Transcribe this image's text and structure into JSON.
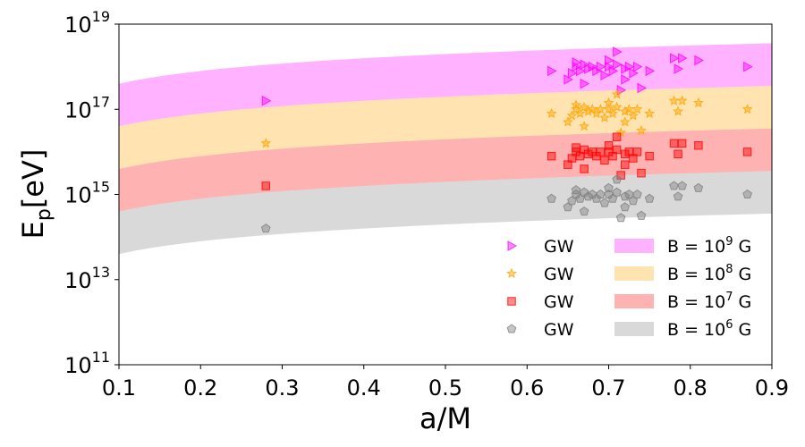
{
  "chart_data": {
    "type": "scatter",
    "title": "",
    "xlabel": "a/M",
    "ylabel_main": "E",
    "ylabel_sub": "p",
    "ylabel_unit": "[eV]",
    "xlim": [
      0.1,
      0.9
    ],
    "ylim_log10": [
      11,
      19
    ],
    "x_ticks": [
      0.1,
      0.2,
      0.3,
      0.4,
      0.5,
      0.6,
      0.7,
      0.8,
      0.9
    ],
    "x_tick_labels": [
      "0.1",
      "0.2",
      "0.3",
      "0.4",
      "0.5",
      "0.6",
      "0.7",
      "0.8",
      "0.9"
    ],
    "y_ticks_log10": [
      11,
      13,
      15,
      17,
      19
    ],
    "y_tick_base": "10",
    "y_tick_exponents": [
      "11",
      "13",
      "15",
      "17",
      "19"
    ],
    "bands": [
      {
        "name": "B = 10^9 G",
        "label_prefix": "B = 10",
        "label_exp": "9",
        "label_suffix": " G",
        "color": "#ff00ff",
        "opacity": 0.3,
        "lower_log10_at_0_1": 16.6,
        "upper_log10_at_0_1": 17.6,
        "lower_log10_at_0_9": 17.55,
        "upper_log10_at_0_9": 18.55
      },
      {
        "name": "B = 10^8 G",
        "label_prefix": "B = 10",
        "label_exp": "8",
        "label_suffix": " G",
        "color": "#ffa500",
        "opacity": 0.3,
        "lower_log10_at_0_1": 15.6,
        "upper_log10_at_0_1": 16.6,
        "lower_log10_at_0_9": 16.55,
        "upper_log10_at_0_9": 17.55
      },
      {
        "name": "B = 10^7 G",
        "label_prefix": "B = 10",
        "label_exp": "7",
        "label_suffix": " G",
        "color": "#ff0000",
        "opacity": 0.3,
        "lower_log10_at_0_1": 14.6,
        "upper_log10_at_0_1": 15.6,
        "lower_log10_at_0_9": 15.55,
        "upper_log10_at_0_9": 16.55
      },
      {
        "name": "B = 10^6 G",
        "label_prefix": "B = 10",
        "label_exp": "6",
        "label_suffix": " G",
        "color": "#808080",
        "opacity": 0.3,
        "lower_log10_at_0_1": 13.6,
        "upper_log10_at_0_1": 14.6,
        "lower_log10_at_0_9": 14.55,
        "upper_log10_at_0_9": 15.55
      }
    ],
    "series": [
      {
        "name": "GW",
        "marker": "triangle-right",
        "color": "#ff00ff",
        "points": [
          [
            0.28,
            17.2
          ],
          [
            0.63,
            17.9
          ],
          [
            0.65,
            17.7
          ],
          [
            0.655,
            17.85
          ],
          [
            0.66,
            18.0
          ],
          [
            0.66,
            18.1
          ],
          [
            0.665,
            17.9
          ],
          [
            0.67,
            18.05
          ],
          [
            0.67,
            17.6
          ],
          [
            0.675,
            17.95
          ],
          [
            0.68,
            18.0
          ],
          [
            0.685,
            17.9
          ],
          [
            0.69,
            18.0
          ],
          [
            0.695,
            17.8
          ],
          [
            0.7,
            18.0
          ],
          [
            0.7,
            18.15
          ],
          [
            0.705,
            17.9
          ],
          [
            0.71,
            18.35
          ],
          [
            0.71,
            18.05
          ],
          [
            0.715,
            17.45
          ],
          [
            0.72,
            17.7
          ],
          [
            0.72,
            17.95
          ],
          [
            0.725,
            18.0
          ],
          [
            0.73,
            17.85
          ],
          [
            0.735,
            18.0
          ],
          [
            0.74,
            17.5
          ],
          [
            0.75,
            17.9
          ],
          [
            0.78,
            18.2
          ],
          [
            0.785,
            17.95
          ],
          [
            0.79,
            18.2
          ],
          [
            0.81,
            18.15
          ],
          [
            0.87,
            18.0
          ]
        ]
      },
      {
        "name": "GW",
        "marker": "star",
        "color": "#ffa500",
        "points": [
          [
            0.28,
            16.2
          ],
          [
            0.63,
            16.9
          ],
          [
            0.65,
            16.7
          ],
          [
            0.655,
            16.85
          ],
          [
            0.66,
            17.0
          ],
          [
            0.66,
            17.1
          ],
          [
            0.665,
            16.9
          ],
          [
            0.67,
            17.05
          ],
          [
            0.67,
            16.6
          ],
          [
            0.675,
            16.95
          ],
          [
            0.68,
            17.0
          ],
          [
            0.685,
            16.9
          ],
          [
            0.69,
            17.0
          ],
          [
            0.695,
            16.8
          ],
          [
            0.7,
            17.0
          ],
          [
            0.7,
            17.15
          ],
          [
            0.705,
            16.9
          ],
          [
            0.71,
            17.35
          ],
          [
            0.71,
            17.05
          ],
          [
            0.715,
            16.45
          ],
          [
            0.72,
            16.7
          ],
          [
            0.72,
            16.95
          ],
          [
            0.725,
            17.0
          ],
          [
            0.73,
            16.85
          ],
          [
            0.735,
            17.0
          ],
          [
            0.74,
            16.5
          ],
          [
            0.75,
            16.9
          ],
          [
            0.78,
            17.2
          ],
          [
            0.785,
            16.95
          ],
          [
            0.79,
            17.2
          ],
          [
            0.81,
            17.15
          ],
          [
            0.87,
            17.0
          ]
        ]
      },
      {
        "name": "GW",
        "marker": "square",
        "color": "#ff0000",
        "points": [
          [
            0.28,
            15.2
          ],
          [
            0.63,
            15.9
          ],
          [
            0.65,
            15.7
          ],
          [
            0.655,
            15.85
          ],
          [
            0.66,
            16.0
          ],
          [
            0.66,
            16.1
          ],
          [
            0.665,
            15.9
          ],
          [
            0.67,
            16.05
          ],
          [
            0.67,
            15.6
          ],
          [
            0.675,
            15.95
          ],
          [
            0.68,
            16.0
          ],
          [
            0.685,
            15.9
          ],
          [
            0.69,
            16.0
          ],
          [
            0.695,
            15.8
          ],
          [
            0.7,
            16.0
          ],
          [
            0.7,
            16.15
          ],
          [
            0.705,
            15.9
          ],
          [
            0.71,
            16.35
          ],
          [
            0.71,
            16.05
          ],
          [
            0.715,
            15.45
          ],
          [
            0.72,
            15.7
          ],
          [
            0.72,
            15.95
          ],
          [
            0.725,
            16.0
          ],
          [
            0.73,
            15.85
          ],
          [
            0.735,
            16.0
          ],
          [
            0.74,
            15.5
          ],
          [
            0.75,
            15.9
          ],
          [
            0.78,
            16.2
          ],
          [
            0.785,
            15.95
          ],
          [
            0.79,
            16.2
          ],
          [
            0.81,
            16.15
          ],
          [
            0.87,
            16.0
          ]
        ]
      },
      {
        "name": "GW",
        "marker": "pentagon",
        "color": "#808080",
        "points": [
          [
            0.28,
            14.2
          ],
          [
            0.63,
            14.9
          ],
          [
            0.65,
            14.7
          ],
          [
            0.655,
            14.85
          ],
          [
            0.66,
            15.0
          ],
          [
            0.66,
            15.1
          ],
          [
            0.665,
            14.9
          ],
          [
            0.67,
            15.05
          ],
          [
            0.67,
            14.6
          ],
          [
            0.675,
            14.95
          ],
          [
            0.68,
            15.0
          ],
          [
            0.685,
            14.9
          ],
          [
            0.69,
            15.0
          ],
          [
            0.695,
            14.8
          ],
          [
            0.7,
            15.0
          ],
          [
            0.7,
            15.15
          ],
          [
            0.705,
            14.9
          ],
          [
            0.71,
            15.35
          ],
          [
            0.71,
            15.05
          ],
          [
            0.715,
            14.45
          ],
          [
            0.72,
            14.7
          ],
          [
            0.72,
            14.95
          ],
          [
            0.725,
            15.0
          ],
          [
            0.73,
            14.85
          ],
          [
            0.735,
            15.0
          ],
          [
            0.74,
            14.5
          ],
          [
            0.75,
            14.9
          ],
          [
            0.78,
            15.2
          ],
          [
            0.785,
            14.95
          ],
          [
            0.79,
            15.2
          ],
          [
            0.81,
            15.15
          ],
          [
            0.87,
            15.0
          ]
        ]
      }
    ],
    "legend_position": "lower-right"
  }
}
